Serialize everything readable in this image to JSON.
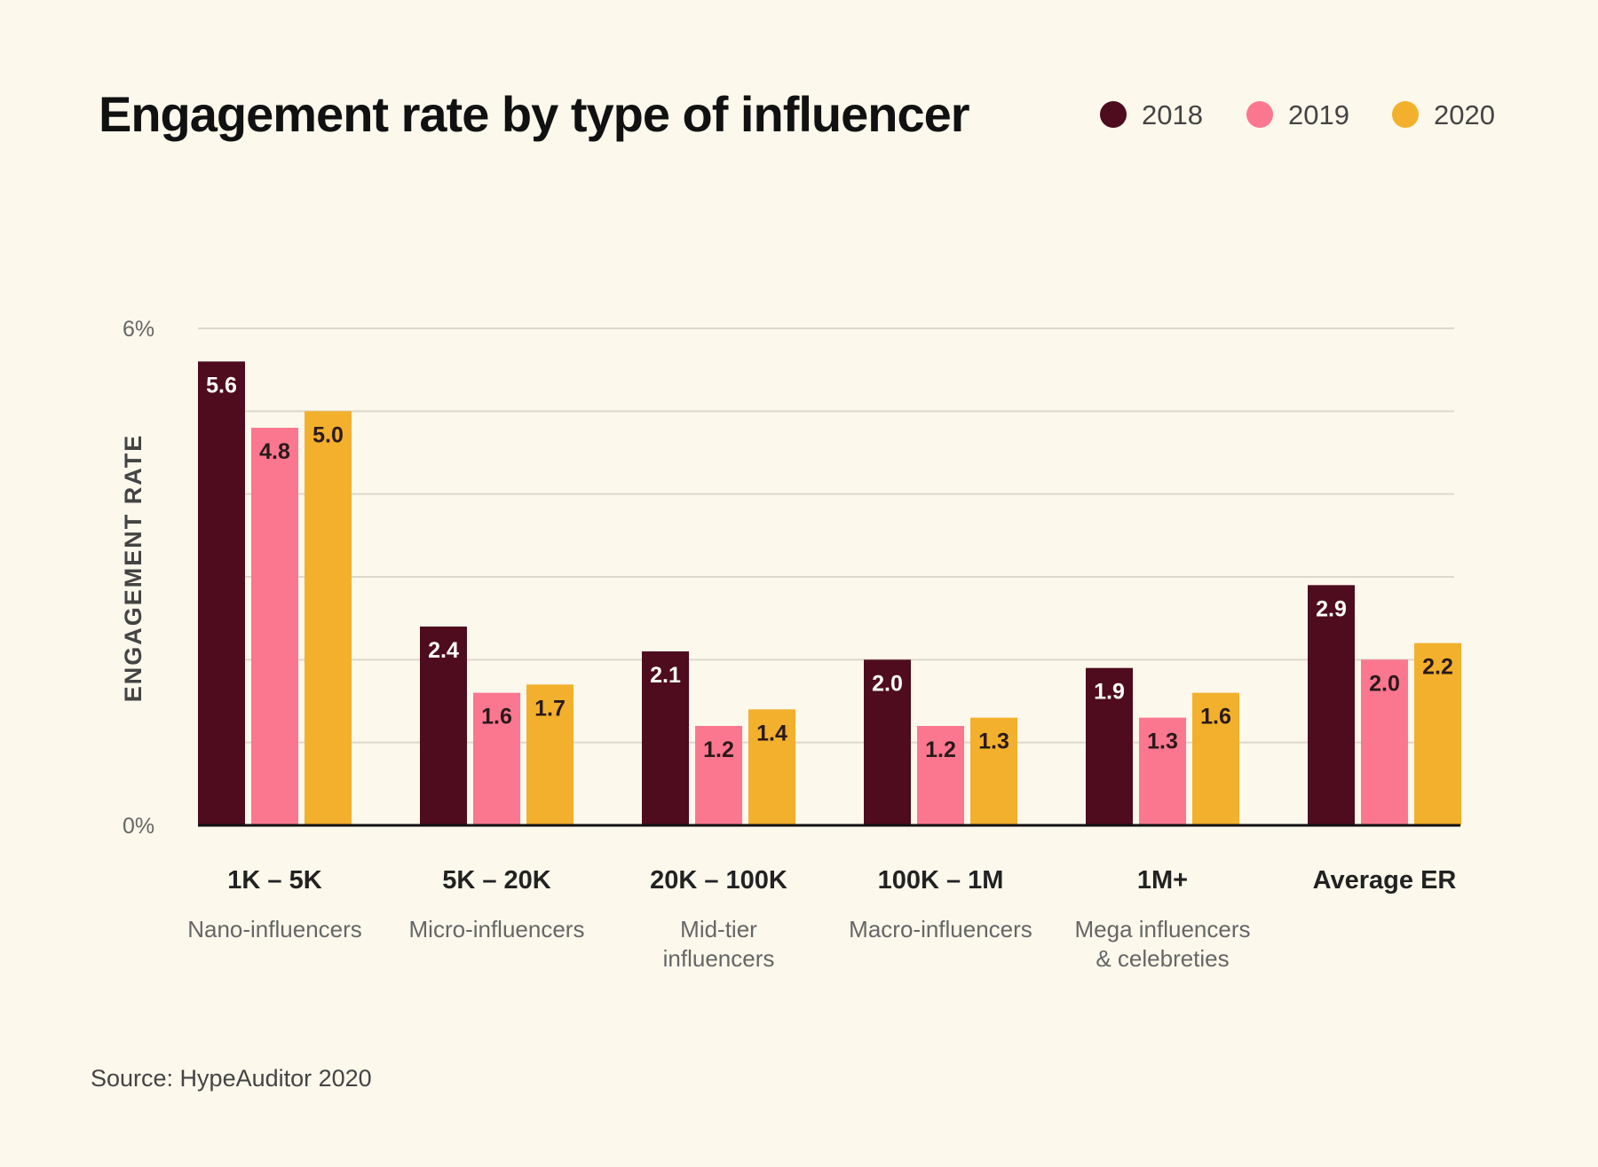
{
  "chart_data": {
    "type": "bar",
    "title": "Engagement rate by type of influencer",
    "ylabel": "ENGAGEMENT RATE",
    "xlabel": "",
    "ylim": [
      0,
      6
    ],
    "yticks": [
      {
        "value": 0,
        "label": "0%"
      },
      {
        "value": 6,
        "label": "6%"
      }
    ],
    "grid": true,
    "legend_position": "top-right",
    "categories": [
      "1K – 5K",
      "5K – 20K",
      "20K – 100K",
      "100K – 1M",
      "1M+",
      "Average ER"
    ],
    "category_subtitles": [
      [
        "Nano-influencers"
      ],
      [
        "Micro-influencers"
      ],
      [
        "Mid-tier",
        "influencers"
      ],
      [
        "Macro-influencers"
      ],
      [
        "Mega influencers",
        "& celebreties"
      ],
      []
    ],
    "series": [
      {
        "name": "2018",
        "color": "#4e0c1e",
        "label_color": "#ffffff",
        "values": [
          5.6,
          2.4,
          2.1,
          2.0,
          1.9,
          2.9
        ],
        "labels": [
          "5.6",
          "2.4",
          "2.1",
          "2.0",
          "1.9",
          "2.9"
        ]
      },
      {
        "name": "2019",
        "color": "#fb7790",
        "label_color": "#2a1a1a",
        "values": [
          4.8,
          1.6,
          1.2,
          1.2,
          1.3,
          2.0
        ],
        "labels": [
          "4.8",
          "1.6",
          "1.2",
          "1.2",
          "1.3",
          "2.0"
        ]
      },
      {
        "name": "2020",
        "color": "#f2b02c",
        "label_color": "#2a1a1a",
        "values": [
          5.0,
          1.7,
          1.4,
          1.3,
          1.6,
          2.2
        ],
        "labels": [
          "5.0",
          "1.7",
          "1.4",
          "1.3",
          "1.6",
          "2.2"
        ]
      }
    ],
    "source": "Source: HypeAuditor 2020"
  },
  "colors": {
    "background": "#fcf8ec",
    "gridline": "#dcd8cc",
    "axis": "#111111"
  }
}
